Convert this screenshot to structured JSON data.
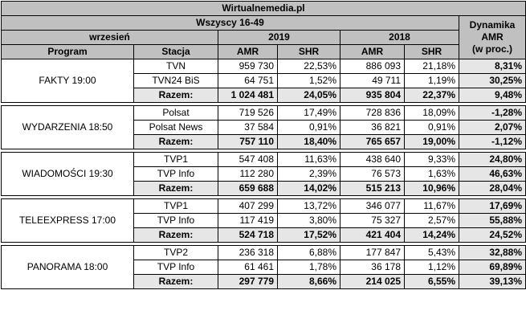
{
  "header": {
    "site": "Wirtualnemedia.pl",
    "group": "Wszyscy 16-49",
    "period": "wrzesień",
    "year_current": "2019",
    "year_prev": "2018",
    "dynamics_line1": "Dynamika",
    "dynamics_line2": "AMR",
    "dynamics_line3": "(w proc.)",
    "col_program": "Program",
    "col_station": "Stacja",
    "col_amr": "AMR",
    "col_shr": "SHR"
  },
  "programs": [
    {
      "name": "FAKTY 19:00",
      "rows": [
        {
          "station": "TVN",
          "amr2019": "959 730",
          "shr2019": "22,53%",
          "amr2018": "886 093",
          "shr2018": "21,18%",
          "dyn": "8,31%"
        },
        {
          "station": "TVN24 BiS",
          "amr2019": "64 751",
          "shr2019": "1,52%",
          "amr2018": "49 711",
          "shr2018": "1,19%",
          "dyn": "30,25%"
        },
        {
          "station": "Razem:",
          "amr2019": "1 024 481",
          "shr2019": "24,05%",
          "amr2018": "935 804",
          "shr2018": "22,37%",
          "dyn": "9,48%"
        }
      ]
    },
    {
      "name": "WYDARZENIA 18:50",
      "rows": [
        {
          "station": "Polsat",
          "amr2019": "719 526",
          "shr2019": "17,49%",
          "amr2018": "728 836",
          "shr2018": "18,09%",
          "dyn": "-1,28%"
        },
        {
          "station": "Polsat News",
          "amr2019": "37 584",
          "shr2019": "0,91%",
          "amr2018": "36 821",
          "shr2018": "0,91%",
          "dyn": "2,07%"
        },
        {
          "station": "Razem:",
          "amr2019": "757 110",
          "shr2019": "18,40%",
          "amr2018": "765 657",
          "shr2018": "19,00%",
          "dyn": "-1,12%"
        }
      ]
    },
    {
      "name": "WIADOMOŚCI 19:30",
      "rows": [
        {
          "station": "TVP1",
          "amr2019": "547 408",
          "shr2019": "11,63%",
          "amr2018": "438 640",
          "shr2018": "9,33%",
          "dyn": "24,80%"
        },
        {
          "station": "TVP Info",
          "amr2019": "112 280",
          "shr2019": "2,39%",
          "amr2018": "76 573",
          "shr2018": "1,63%",
          "dyn": "46,63%"
        },
        {
          "station": "Razem:",
          "amr2019": "659 688",
          "shr2019": "14,02%",
          "amr2018": "515 213",
          "shr2018": "10,96%",
          "dyn": "28,04%"
        }
      ]
    },
    {
      "name": "TELEEXPRESS 17:00",
      "rows": [
        {
          "station": "TVP1",
          "amr2019": "407 299",
          "shr2019": "13,72%",
          "amr2018": "346 077",
          "shr2018": "11,67%",
          "dyn": "17,69%"
        },
        {
          "station": "TVP Info",
          "amr2019": "117 419",
          "shr2019": "3,80%",
          "amr2018": "75 327",
          "shr2018": "2,57%",
          "dyn": "55,88%"
        },
        {
          "station": "Razem:",
          "amr2019": "524 718",
          "shr2019": "17,52%",
          "amr2018": "421 404",
          "shr2018": "14,24%",
          "dyn": "24,52%"
        }
      ]
    },
    {
      "name": "PANORAMA 18:00",
      "rows": [
        {
          "station": "TVP2",
          "amr2019": "236 318",
          "shr2019": "6,88%",
          "amr2018": "177 847",
          "shr2018": "5,43%",
          "dyn": "32,88%"
        },
        {
          "station": "TVP Info",
          "amr2019": "61 461",
          "shr2019": "1,78%",
          "amr2018": "36 178",
          "shr2018": "1,12%",
          "dyn": "69,89%"
        },
        {
          "station": "Razem:",
          "amr2019": "297 779",
          "shr2019": "8,66%",
          "amr2018": "214 025",
          "shr2018": "6,55%",
          "dyn": "39,13%"
        }
      ]
    }
  ]
}
